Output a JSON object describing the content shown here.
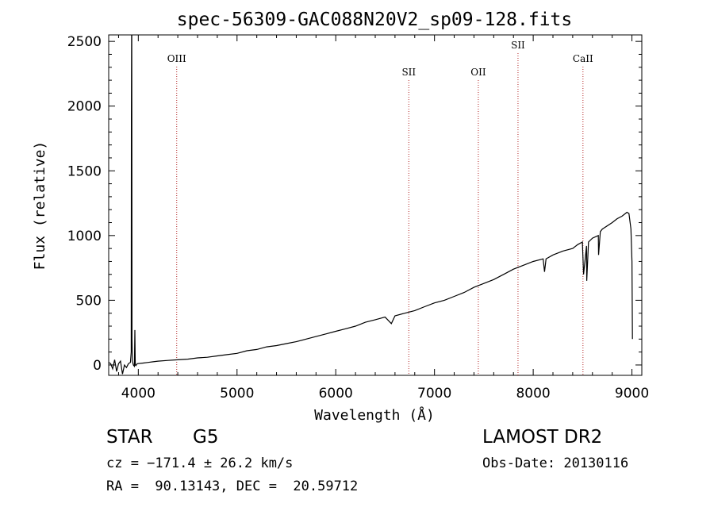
{
  "chart_data": {
    "type": "line",
    "title": "spec-56309-GAC088N20V2_sp09-128.fits",
    "xlabel": "Wavelength (Å)",
    "ylabel": "Flux (relative)",
    "xlim": [
      3700,
      9100
    ],
    "ylim": [
      -80,
      2550
    ],
    "xticks": [
      4000,
      5000,
      6000,
      7000,
      8000,
      9000
    ],
    "yticks": [
      0,
      500,
      1000,
      1500,
      2000,
      2500
    ],
    "grid": false,
    "line_color": "#000000",
    "marker_color": "#b22222",
    "spectrum": {
      "x": [
        3700,
        3720,
        3740,
        3760,
        3780,
        3800,
        3820,
        3840,
        3860,
        3880,
        3900,
        3920,
        3928,
        3930,
        3932,
        3934,
        3936,
        3940,
        3950,
        3960,
        3965,
        3968,
        3970,
        3975,
        3990,
        4050,
        4100,
        4150,
        4200,
        4300,
        4400,
        4500,
        4600,
        4700,
        4800,
        4900,
        5000,
        5100,
        5200,
        5300,
        5400,
        5500,
        5600,
        5700,
        5800,
        5900,
        6000,
        6100,
        6200,
        6300,
        6400,
        6500,
        6563,
        6600,
        6700,
        6800,
        6900,
        7000,
        7100,
        7200,
        7300,
        7400,
        7500,
        7600,
        7700,
        7800,
        7900,
        8000,
        8100,
        8115,
        8130,
        8200,
        8300,
        8400,
        8450,
        8498,
        8510,
        8540,
        8542,
        8560,
        8600,
        8660,
        8662,
        8680,
        8700,
        8800,
        8850,
        8900,
        8950,
        8970,
        8990,
        9000,
        9005
      ],
      "y": [
        20,
        10,
        -30,
        40,
        -50,
        10,
        30,
        -70,
        0,
        -20,
        10,
        20,
        100,
        1910,
        2560,
        2560,
        200,
        30,
        0,
        -10,
        270,
        50,
        0,
        -5,
        10,
        15,
        20,
        25,
        30,
        35,
        40,
        45,
        55,
        60,
        70,
        80,
        90,
        110,
        120,
        140,
        150,
        165,
        180,
        200,
        220,
        240,
        260,
        280,
        300,
        330,
        350,
        370,
        320,
        380,
        400,
        420,
        450,
        480,
        500,
        530,
        560,
        600,
        630,
        660,
        700,
        740,
        770,
        800,
        820,
        720,
        820,
        850,
        880,
        900,
        930,
        950,
        700,
        920,
        650,
        950,
        980,
        1000,
        850,
        1030,
        1050,
        1100,
        1130,
        1150,
        1180,
        1170,
        1050,
        800,
        200
      ]
    },
    "annotations": [
      {
        "label": "OIII",
        "x": 4389,
        "level": "mid"
      },
      {
        "label": "SII",
        "x": 6740,
        "level": "low"
      },
      {
        "label": "OII",
        "x": 7444,
        "level": "low"
      },
      {
        "label": "SII",
        "x": 7846,
        "level": "high"
      },
      {
        "label": "CaII",
        "x": 8504,
        "level": "mid"
      }
    ]
  },
  "info": {
    "object_class": "STAR",
    "subclass": "G5",
    "survey": "LAMOST DR2",
    "cz_line": "cz = −171.4 ± 26.2 km/s",
    "obs_date_line": "Obs-Date: 20130116",
    "coords_line": "RA =  90.13143, DEC =  20.59712"
  }
}
